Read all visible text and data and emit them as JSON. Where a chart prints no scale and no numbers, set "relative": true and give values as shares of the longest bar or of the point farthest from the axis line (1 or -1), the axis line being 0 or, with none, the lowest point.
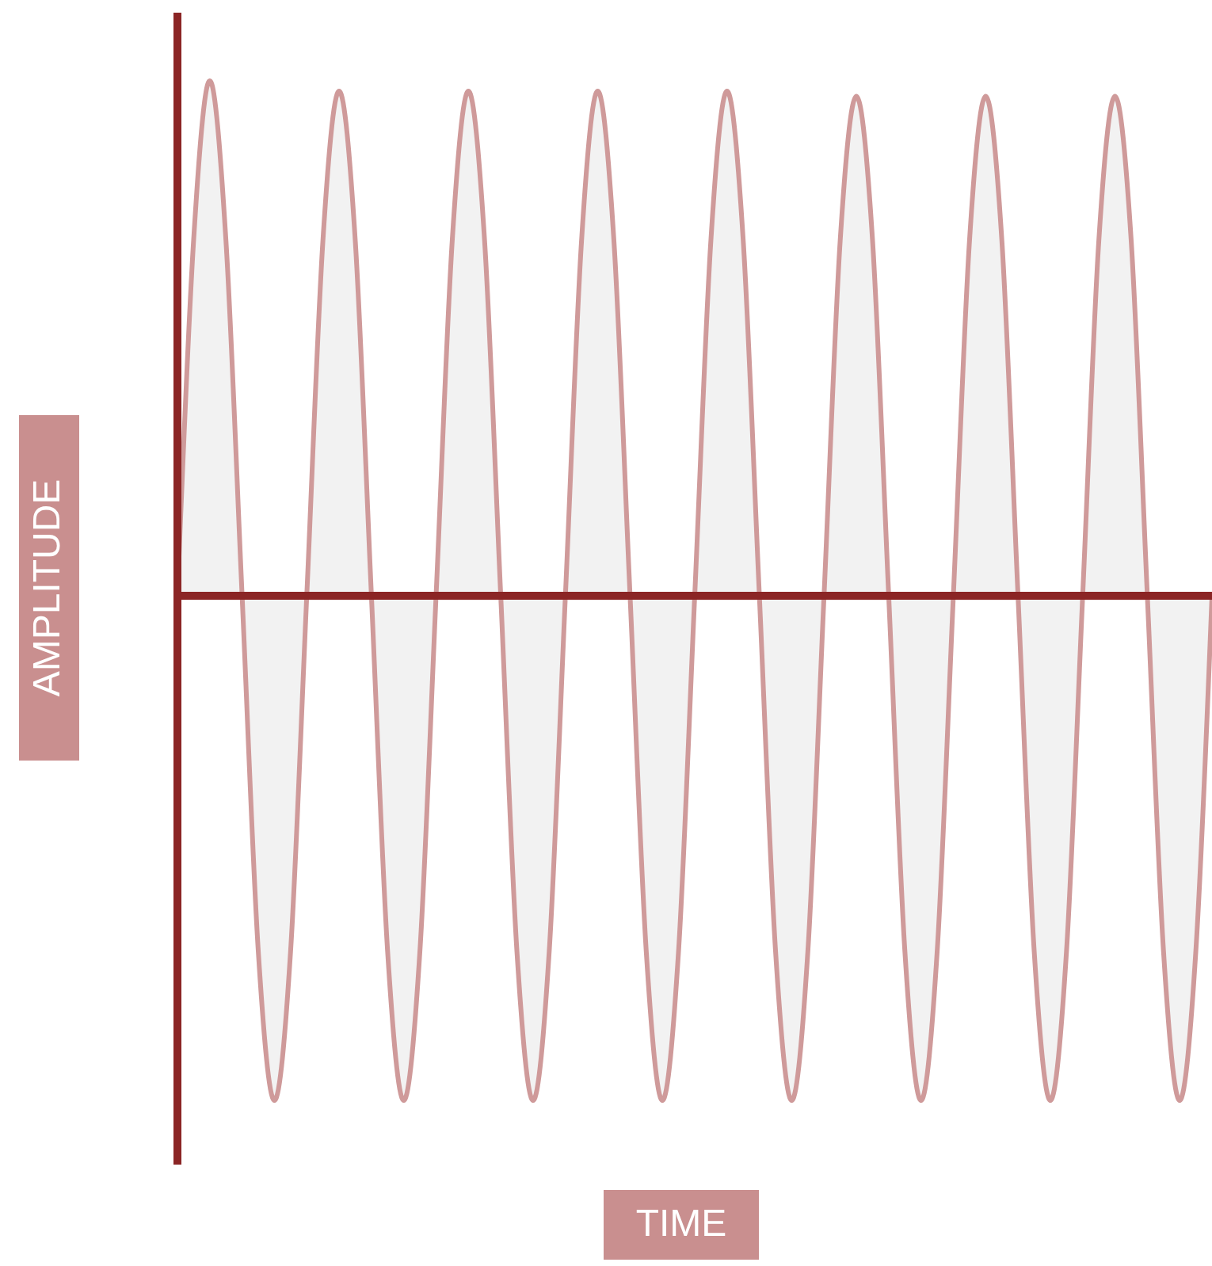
{
  "chart_data": {
    "type": "area",
    "relative": true,
    "xlabel": "TIME",
    "ylabel": "AMPLITUDE",
    "categories": [
      null,
      null,
      null,
      null,
      null,
      null,
      null,
      null,
      null,
      null,
      null,
      null,
      null,
      null,
      null,
      null,
      null,
      null,
      null,
      null,
      null,
      null,
      null,
      null,
      null,
      null,
      null,
      null,
      null,
      null,
      null,
      null,
      null,
      null,
      null,
      null,
      null,
      null,
      null,
      null,
      null,
      null,
      null,
      null,
      null,
      null,
      null,
      null,
      null,
      null,
      null,
      null,
      null,
      null,
      null,
      null,
      null,
      null,
      null,
      null,
      null,
      null,
      null,
      null,
      null
    ],
    "series": [
      {
        "color": "#cf9a9a",
        "values": [
          0,
          0.69,
          1,
          0.69,
          0,
          -0.69,
          -0.98,
          -0.69,
          0,
          0.69,
          0.98,
          0.69,
          0,
          -0.69,
          -0.98,
          -0.69,
          0,
          0.69,
          0.98,
          0.69,
          0,
          -0.69,
          -0.98,
          -0.69,
          0,
          0.69,
          0.98,
          0.69,
          0,
          -0.69,
          -0.98,
          -0.69,
          0,
          0.69,
          0.98,
          0.69,
          0,
          -0.69,
          -0.98,
          -0.69,
          0,
          0.69,
          0.97,
          0.69,
          0,
          -0.69,
          -0.98,
          -0.69,
          0,
          0.69,
          0.97,
          0.69,
          0,
          -0.69,
          -0.98,
          -0.69,
          0,
          0.69,
          0.97,
          0.69,
          0,
          -0.69,
          -0.98,
          -0.69,
          0
        ]
      }
    ]
  }
}
